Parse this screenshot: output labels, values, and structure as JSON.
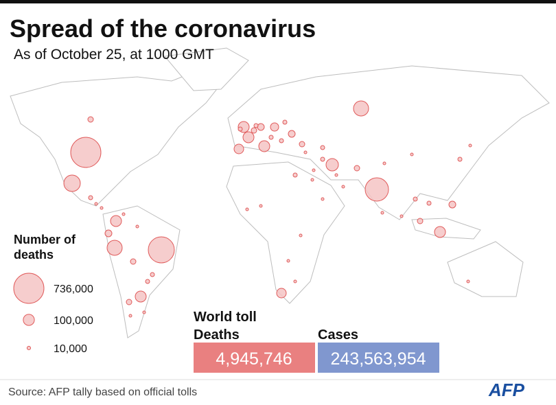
{
  "header": {
    "title": "Spread of the coronavirus",
    "subtitle": "As of October 25,  at 1000 GMT"
  },
  "legend": {
    "title": "Number of deaths",
    "items": [
      {
        "value": 736000,
        "label": "736,000"
      },
      {
        "value": 100000,
        "label": "100,000"
      },
      {
        "value": 10000,
        "label": "10,000"
      }
    ]
  },
  "totals": {
    "title": "World toll",
    "deaths": {
      "label": "Deaths",
      "value": "4,945,746"
    },
    "cases": {
      "label": "Cases",
      "value": "243,563,954"
    }
  },
  "source": "Source: AFP tally based on official tolls",
  "logo": "AFP"
}
